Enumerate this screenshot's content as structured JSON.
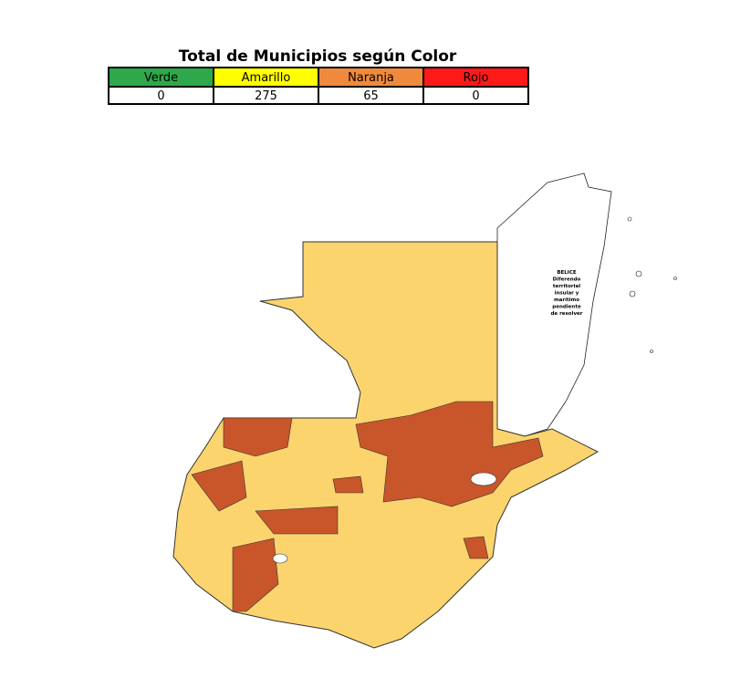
{
  "header": {
    "title": "Total de Municipios según Color"
  },
  "table": {
    "columns": [
      {
        "label": "Verde",
        "color": "#2ea84a"
      },
      {
        "label": "Amarillo",
        "color": "#ffff00"
      },
      {
        "label": "Naranja",
        "color": "#ef8a3c"
      },
      {
        "label": "Rojo",
        "color": "#ff1a1a"
      }
    ],
    "rows": [
      [
        0,
        275,
        65,
        0
      ]
    ]
  },
  "map": {
    "annotation": [
      "BELICE",
      "Diferendo",
      "territorial",
      "insular y",
      "marítimo",
      "pendiente",
      "de resolver"
    ]
  }
}
